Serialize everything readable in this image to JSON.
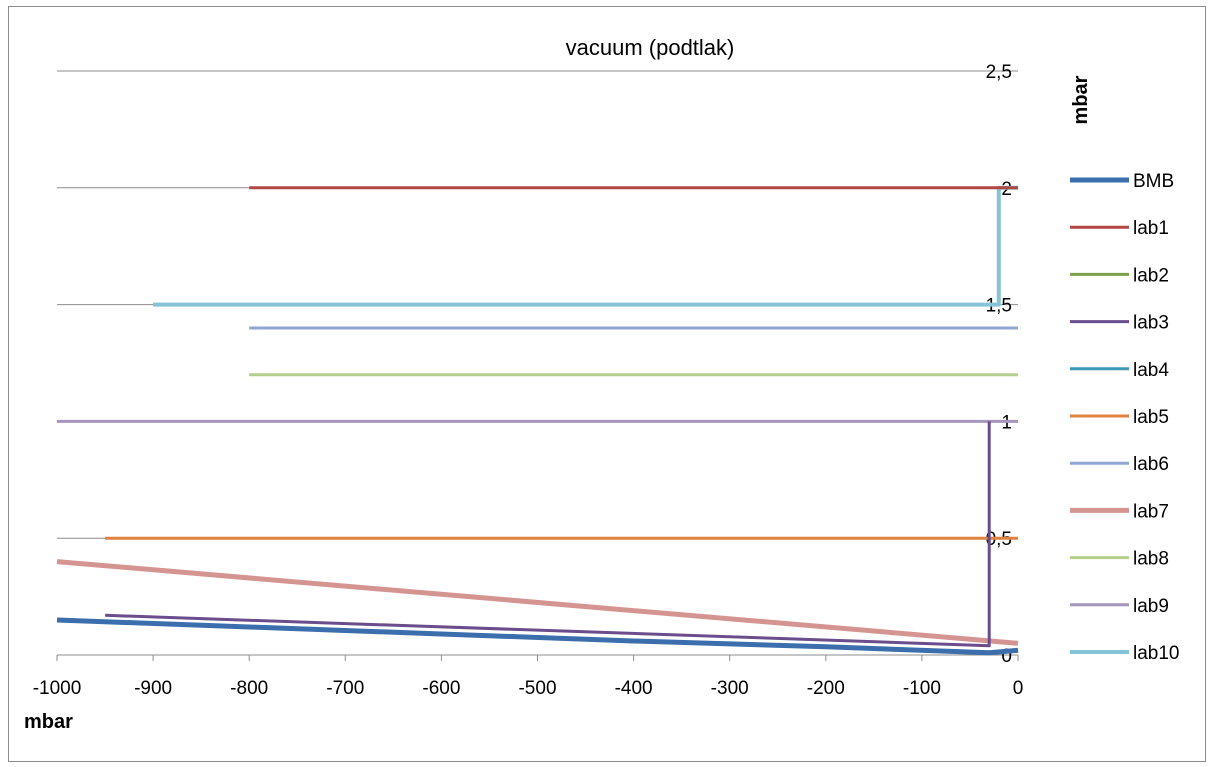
{
  "chart_data": {
    "type": "line",
    "title": "vacuum (podtlak)",
    "xlabel": "mbar",
    "ylabel": "mbar",
    "xlim": [
      -1000,
      0
    ],
    "ylim": [
      0,
      2.5
    ],
    "x_ticks": [
      "-1000",
      "-900",
      "-800",
      "-700",
      "-600",
      "-500",
      "-400",
      "-300",
      "-200",
      "-100",
      "0"
    ],
    "y_ticks": [
      "0",
      "0,5",
      "1",
      "1,5",
      "2",
      "2,5"
    ],
    "grid": "horizontal",
    "legend_position": "right",
    "series": [
      {
        "name": "BMB",
        "color": "#3c6ead",
        "x": [
          -1000,
          -800,
          -600,
          -400,
          -200,
          -30,
          0
        ],
        "y": [
          0.15,
          0.12,
          0.09,
          0.06,
          0.035,
          0.01,
          0.02
        ]
      },
      {
        "name": "lab1",
        "color": "#b04743",
        "x": [
          -800,
          0
        ],
        "y": [
          2,
          2
        ]
      },
      {
        "name": "lab2",
        "color": "#7da14b",
        "x": [],
        "y": []
      },
      {
        "name": "lab3",
        "color": "#6b4c8c",
        "x": [
          -950,
          -30,
          -30
        ],
        "y": [
          0.17,
          0.04,
          1
        ]
      },
      {
        "name": "lab4",
        "color": "#3e97b4",
        "x": [],
        "y": []
      },
      {
        "name": "lab5",
        "color": "#e0823f",
        "x": [
          -950,
          0
        ],
        "y": [
          0.5,
          0.5
        ]
      },
      {
        "name": "lab6",
        "color": "#8fa7d2",
        "x": [
          -800,
          0
        ],
        "y": [
          1.4,
          1.4
        ]
      },
      {
        "name": "lab7",
        "color": "#d49491",
        "x": [
          -1000,
          0
        ],
        "y": [
          0.4,
          0.05
        ]
      },
      {
        "name": "lab8",
        "color": "#b4cf8c",
        "x": [
          -800,
          0
        ],
        "y": [
          1.2,
          1.2
        ]
      },
      {
        "name": "lab9",
        "color": "#a496bc",
        "x": [
          -1000,
          0
        ],
        "y": [
          1,
          1
        ]
      },
      {
        "name": "lab10",
        "color": "#86c3d6",
        "x": [
          -900,
          -20,
          -20,
          0
        ],
        "y": [
          1.5,
          1.5,
          2,
          2
        ]
      }
    ]
  }
}
